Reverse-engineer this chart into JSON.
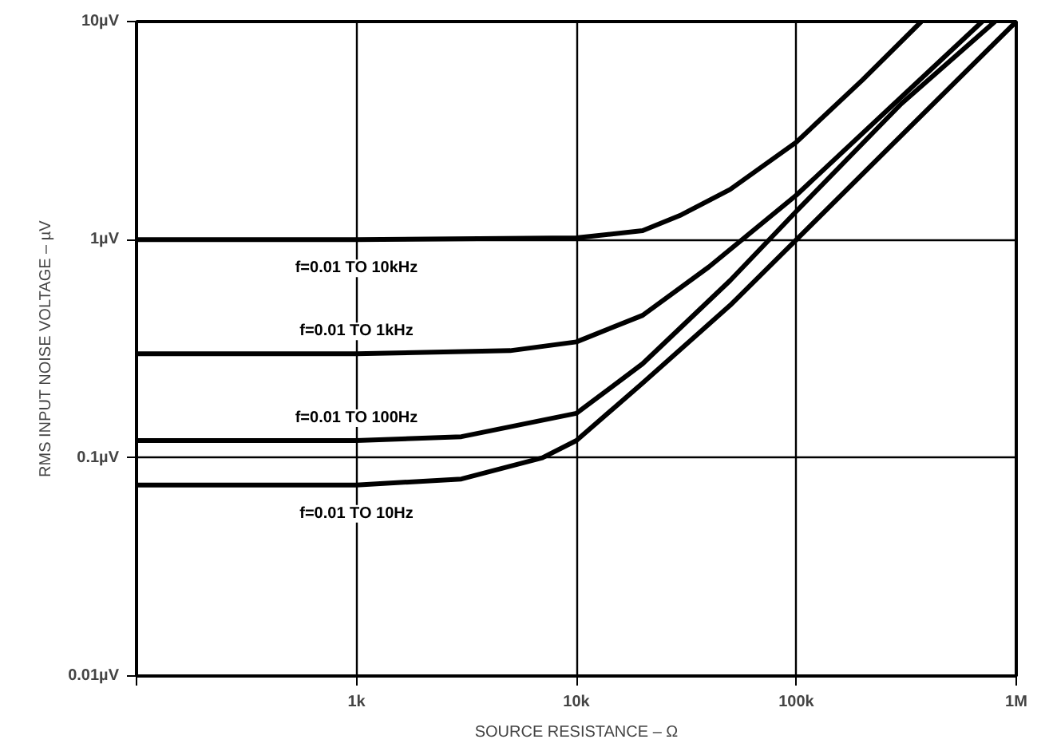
{
  "chart_data": {
    "type": "line",
    "xlabel": "SOURCE RESISTANCE – Ω",
    "ylabel": "RMS INPUT NOISE VOLTAGE – µV",
    "log": "xy",
    "grid": true,
    "xlim": [
      100,
      1000000
    ],
    "ylim": [
      0.01,
      10
    ],
    "xticks": [
      {
        "value": 100,
        "label": null
      },
      {
        "value": 1000,
        "label": "1k"
      },
      {
        "value": 10000,
        "label": "10k"
      },
      {
        "value": 100000,
        "label": "100k"
      },
      {
        "value": 1000000,
        "label": "1M"
      }
    ],
    "yticks": [
      {
        "value": 0.01,
        "label": "0.01µV"
      },
      {
        "value": 0.1,
        "label": "0.1µV"
      },
      {
        "value": 1,
        "label": "1µV"
      },
      {
        "value": 10,
        "label": "10µV"
      }
    ],
    "series": [
      {
        "name": "f=0.01 TO 10kHz",
        "color": "#000000",
        "x": [
          100,
          1000,
          10000,
          20000,
          30000,
          50000,
          100000,
          200000,
          370000
        ],
        "values": [
          1,
          1,
          1.02,
          1.1,
          1.3,
          1.7,
          2.8,
          5.4,
          10
        ]
      },
      {
        "name": "f=0.01 TO 1kHz",
        "color": "#000000",
        "x": [
          100,
          1000,
          5000,
          10000,
          20000,
          40000,
          100000,
          300000,
          700000
        ],
        "values": [
          0.3,
          0.3,
          0.31,
          0.34,
          0.45,
          0.75,
          1.6,
          4.5,
          10
        ]
      },
      {
        "name": "f=0.01 TO 100Hz",
        "color": "#000000",
        "x": [
          100,
          1000,
          3000,
          10000,
          20000,
          50000,
          100000,
          300000,
          800000
        ],
        "values": [
          0.12,
          0.12,
          0.125,
          0.16,
          0.27,
          0.65,
          1.35,
          4.2,
          10
        ]
      },
      {
        "name": "f=0.01 TO 10Hz",
        "color": "#000000",
        "x": [
          100,
          1000,
          3000,
          7000,
          10000,
          20000,
          50000,
          100000,
          300000,
          1000000
        ],
        "values": [
          0.075,
          0.075,
          0.08,
          0.1,
          0.12,
          0.22,
          0.5,
          1.0,
          3.0,
          10
        ]
      }
    ]
  }
}
